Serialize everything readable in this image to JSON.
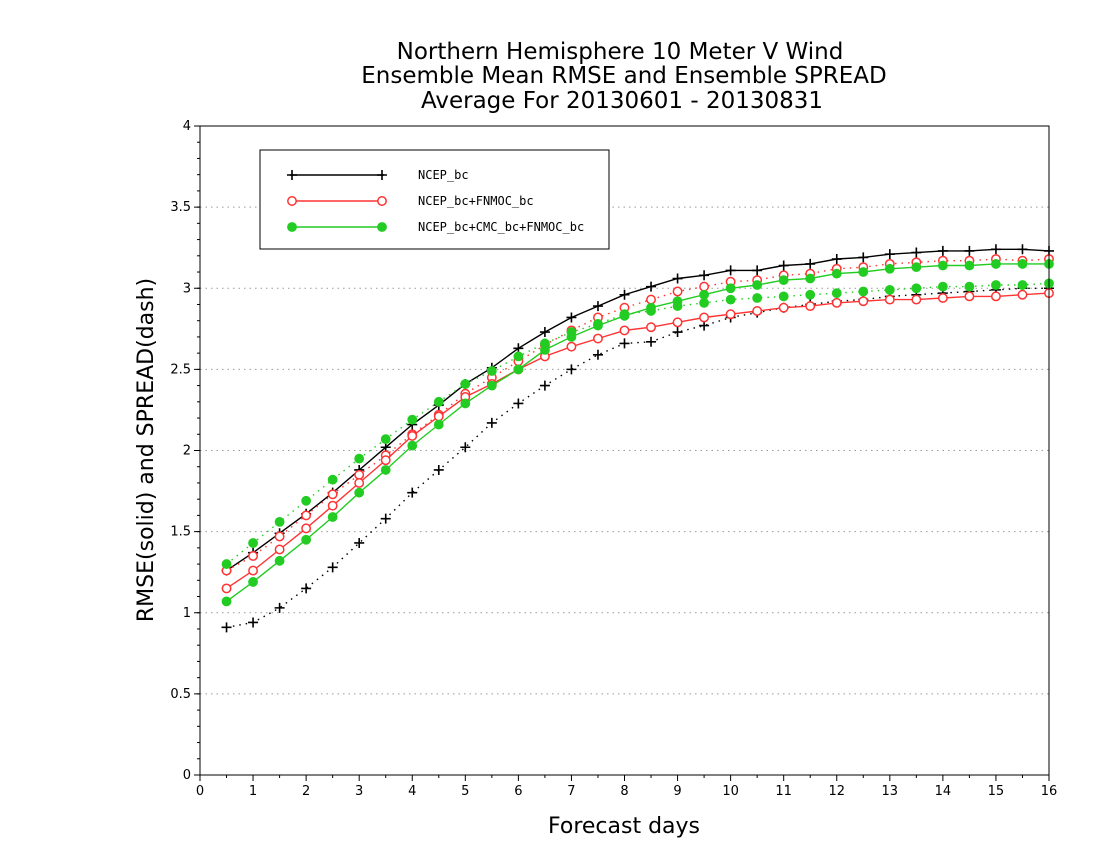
{
  "chart_data": {
    "type": "line",
    "title_lines": [
      "Northern Hemisphere 10 Meter V Wind",
      "Ensemble Mean RMSE and Ensemble SPREAD",
      "Average For 20130601 - 20130831"
    ],
    "xlabel": "Forecast days",
    "ylabel": "RMSE(solid)  and  SPREAD(dash)",
    "xlim": [
      0,
      16
    ],
    "ylim": [
      0,
      4
    ],
    "x_ticks": [
      "0",
      "1",
      "2",
      "3",
      "4",
      "5",
      "6",
      "7",
      "8",
      "9",
      "10",
      "11",
      "12",
      "13",
      "14",
      "15",
      "16"
    ],
    "y_ticks": [
      "0",
      "0.5",
      "1",
      "1.5",
      "2",
      "2.5",
      "3",
      "3.5",
      "4"
    ],
    "grid": "horizontal dotted",
    "legend_position": "top-left",
    "x": [
      0.5,
      1,
      1.5,
      2,
      2.5,
      3,
      3.5,
      4,
      4.5,
      5,
      5.5,
      6,
      6.5,
      7,
      7.5,
      8,
      8.5,
      9,
      9.5,
      10,
      10.5,
      11,
      11.5,
      12,
      12.5,
      13,
      13.5,
      14,
      14.5,
      15,
      15.5,
      16
    ],
    "series": [
      {
        "name": "NCEP_bc",
        "color": "#000000",
        "marker": "plus",
        "rmse": [
          1.26,
          1.37,
          1.49,
          1.61,
          1.74,
          1.88,
          2.02,
          2.16,
          2.28,
          2.41,
          2.51,
          2.63,
          2.73,
          2.82,
          2.89,
          2.96,
          3.01,
          3.06,
          3.08,
          3.11,
          3.11,
          3.14,
          3.15,
          3.18,
          3.19,
          3.21,
          3.22,
          3.23,
          3.23,
          3.24,
          3.24,
          3.23
        ],
        "spread": [
          0.91,
          0.94,
          1.03,
          1.15,
          1.28,
          1.43,
          1.58,
          1.74,
          1.88,
          2.02,
          2.17,
          2.29,
          2.4,
          2.5,
          2.59,
          2.66,
          2.67,
          2.73,
          2.77,
          2.82,
          2.85,
          2.88,
          2.9,
          2.92,
          2.93,
          2.95,
          2.96,
          2.97,
          2.98,
          2.99,
          3.0,
          3.0
        ]
      },
      {
        "name": "NCEP_bc+FNMOC_bc",
        "color": "#ff3333",
        "marker": "open-circle",
        "rmse": [
          1.15,
          1.26,
          1.39,
          1.52,
          1.66,
          1.8,
          1.94,
          2.09,
          2.21,
          2.33,
          2.41,
          2.5,
          2.58,
          2.64,
          2.69,
          2.74,
          2.76,
          2.79,
          2.82,
          2.84,
          2.86,
          2.88,
          2.89,
          2.91,
          2.92,
          2.93,
          2.93,
          2.94,
          2.95,
          2.95,
          2.96,
          2.97
        ],
        "spread": [
          1.26,
          1.35,
          1.47,
          1.6,
          1.73,
          1.85,
          1.97,
          2.1,
          2.22,
          2.35,
          2.45,
          2.55,
          2.65,
          2.74,
          2.82,
          2.88,
          2.93,
          2.98,
          3.01,
          3.04,
          3.05,
          3.08,
          3.09,
          3.12,
          3.13,
          3.15,
          3.16,
          3.17,
          3.17,
          3.18,
          3.17,
          3.18
        ]
      },
      {
        "name": "NCEP_bc+CMC_bc+FNMOC_bc",
        "color": "#22cc22",
        "marker": "filled-circle",
        "rmse": [
          1.07,
          1.19,
          1.32,
          1.45,
          1.59,
          1.74,
          1.88,
          2.03,
          2.16,
          2.29,
          2.4,
          2.5,
          2.62,
          2.7,
          2.77,
          2.83,
          2.88,
          2.92,
          2.96,
          3.0,
          3.02,
          3.05,
          3.06,
          3.09,
          3.1,
          3.12,
          3.13,
          3.14,
          3.14,
          3.15,
          3.15,
          3.15
        ],
        "spread": [
          1.3,
          1.43,
          1.56,
          1.69,
          1.82,
          1.95,
          2.07,
          2.19,
          2.3,
          2.41,
          2.49,
          2.58,
          2.66,
          2.73,
          2.78,
          2.84,
          2.86,
          2.89,
          2.91,
          2.93,
          2.94,
          2.95,
          2.96,
          2.97,
          2.98,
          2.99,
          3.0,
          3.01,
          3.01,
          3.02,
          3.02,
          3.03
        ]
      }
    ]
  }
}
